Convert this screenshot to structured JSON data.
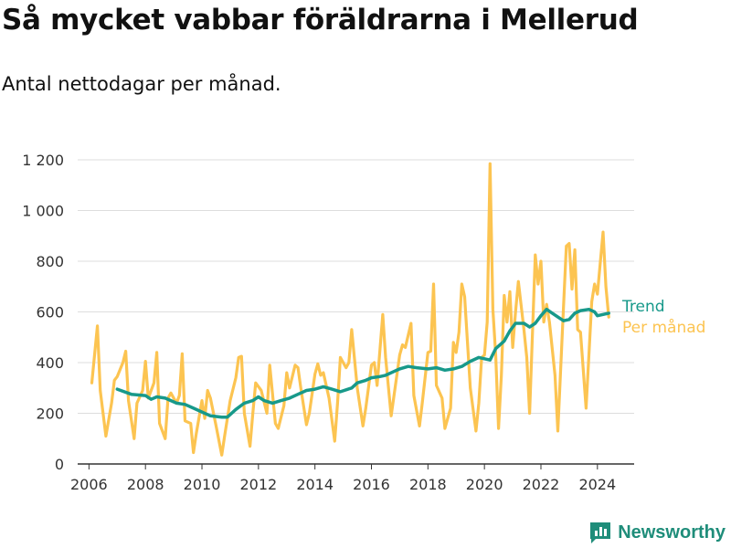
{
  "title": "Så mycket vabbar föräldrarna i Mellerud",
  "subtitle": "Antal nettodagar per månad.",
  "brand": "Newsworthy",
  "colors": {
    "trend": "#17998a",
    "monthly": "#fcc451",
    "grid": "#dddddd",
    "axis": "#333333"
  },
  "chart_data": {
    "type": "line",
    "title": "Så mycket vabbar föräldrarna i Mellerud",
    "subtitle": "Antal nettodagar per månad.",
    "xlabel": "",
    "ylabel": "",
    "xlim": [
      2005.6,
      2025.3
    ],
    "ylim": [
      0,
      1200
    ],
    "x_ticks": [
      2006,
      2008,
      2010,
      2012,
      2014,
      2016,
      2018,
      2020,
      2022,
      2024
    ],
    "x_tick_labels": [
      "2006",
      "2008",
      "2010",
      "2012",
      "2014",
      "2016",
      "2018",
      "2020",
      "2022",
      "2024"
    ],
    "y_ticks": [
      0,
      200,
      400,
      600,
      800,
      1000,
      1200
    ],
    "y_tick_labels": [
      "0",
      "200",
      "400",
      "600",
      "800",
      "1 000",
      "1 200"
    ],
    "grid": true,
    "legend": "right-end labels",
    "series": [
      {
        "name": "Per månad",
        "color": "#fcc451",
        "points": [
          [
            2006.1,
            320
          ],
          [
            2006.3,
            545
          ],
          [
            2006.4,
            290
          ],
          [
            2006.6,
            110
          ],
          [
            2006.8,
            240
          ],
          [
            2006.9,
            330
          ],
          [
            2007.0,
            345
          ],
          [
            2007.2,
            400
          ],
          [
            2007.3,
            445
          ],
          [
            2007.4,
            250
          ],
          [
            2007.6,
            100
          ],
          [
            2007.7,
            240
          ],
          [
            2007.9,
            290
          ],
          [
            2008.0,
            405
          ],
          [
            2008.1,
            260
          ],
          [
            2008.3,
            320
          ],
          [
            2008.4,
            440
          ],
          [
            2008.5,
            160
          ],
          [
            2008.7,
            100
          ],
          [
            2008.8,
            260
          ],
          [
            2008.9,
            280
          ],
          [
            2009.1,
            240
          ],
          [
            2009.2,
            270
          ],
          [
            2009.3,
            435
          ],
          [
            2009.4,
            170
          ],
          [
            2009.6,
            160
          ],
          [
            2009.7,
            45
          ],
          [
            2009.8,
            120
          ],
          [
            2010.0,
            250
          ],
          [
            2010.1,
            180
          ],
          [
            2010.2,
            290
          ],
          [
            2010.3,
            260
          ],
          [
            2010.5,
            150
          ],
          [
            2010.7,
            35
          ],
          [
            2010.8,
            110
          ],
          [
            2011.0,
            250
          ],
          [
            2011.2,
            340
          ],
          [
            2011.3,
            420
          ],
          [
            2011.4,
            425
          ],
          [
            2011.5,
            200
          ],
          [
            2011.7,
            70
          ],
          [
            2011.8,
            200
          ],
          [
            2011.9,
            320
          ],
          [
            2012.1,
            290
          ],
          [
            2012.3,
            200
          ],
          [
            2012.4,
            390
          ],
          [
            2012.6,
            160
          ],
          [
            2012.7,
            140
          ],
          [
            2012.9,
            230
          ],
          [
            2013.0,
            360
          ],
          [
            2013.1,
            300
          ],
          [
            2013.3,
            390
          ],
          [
            2013.4,
            380
          ],
          [
            2013.5,
            300
          ],
          [
            2013.7,
            155
          ],
          [
            2013.8,
            200
          ],
          [
            2014.0,
            355
          ],
          [
            2014.1,
            395
          ],
          [
            2014.2,
            350
          ],
          [
            2014.3,
            360
          ],
          [
            2014.5,
            260
          ],
          [
            2014.7,
            90
          ],
          [
            2014.8,
            240
          ],
          [
            2014.9,
            420
          ],
          [
            2015.1,
            380
          ],
          [
            2015.2,
            400
          ],
          [
            2015.3,
            530
          ],
          [
            2015.5,
            300
          ],
          [
            2015.7,
            150
          ],
          [
            2015.8,
            220
          ],
          [
            2016.0,
            390
          ],
          [
            2016.1,
            400
          ],
          [
            2016.2,
            310
          ],
          [
            2016.4,
            590
          ],
          [
            2016.5,
            420
          ],
          [
            2016.7,
            190
          ],
          [
            2016.8,
            270
          ],
          [
            2017.0,
            430
          ],
          [
            2017.1,
            470
          ],
          [
            2017.2,
            460
          ],
          [
            2017.4,
            555
          ],
          [
            2017.5,
            270
          ],
          [
            2017.7,
            150
          ],
          [
            2017.8,
            240
          ],
          [
            2018.0,
            440
          ],
          [
            2018.1,
            445
          ],
          [
            2018.2,
            710
          ],
          [
            2018.3,
            310
          ],
          [
            2018.5,
            260
          ],
          [
            2018.6,
            140
          ],
          [
            2018.8,
            220
          ],
          [
            2018.9,
            480
          ],
          [
            2019.0,
            440
          ],
          [
            2019.1,
            520
          ],
          [
            2019.2,
            710
          ],
          [
            2019.3,
            660
          ],
          [
            2019.5,
            300
          ],
          [
            2019.7,
            130
          ],
          [
            2019.8,
            240
          ],
          [
            2019.9,
            420
          ],
          [
            2020.0,
            430
          ],
          [
            2020.1,
            560
          ],
          [
            2020.2,
            1185
          ],
          [
            2020.3,
            610
          ],
          [
            2020.4,
            430
          ],
          [
            2020.5,
            140
          ],
          [
            2020.6,
            350
          ],
          [
            2020.7,
            665
          ],
          [
            2020.8,
            560
          ],
          [
            2020.9,
            680
          ],
          [
            2021.0,
            460
          ],
          [
            2021.1,
            600
          ],
          [
            2021.2,
            720
          ],
          [
            2021.4,
            530
          ],
          [
            2021.5,
            420
          ],
          [
            2021.6,
            200
          ],
          [
            2021.8,
            825
          ],
          [
            2021.9,
            710
          ],
          [
            2022.0,
            800
          ],
          [
            2022.1,
            560
          ],
          [
            2022.2,
            630
          ],
          [
            2022.3,
            560
          ],
          [
            2022.5,
            350
          ],
          [
            2022.6,
            130
          ],
          [
            2022.8,
            620
          ],
          [
            2022.9,
            860
          ],
          [
            2023.0,
            870
          ],
          [
            2023.1,
            690
          ],
          [
            2023.2,
            845
          ],
          [
            2023.3,
            530
          ],
          [
            2023.4,
            520
          ],
          [
            2023.6,
            220
          ],
          [
            2023.8,
            640
          ],
          [
            2023.9,
            710
          ],
          [
            2024.0,
            670
          ],
          [
            2024.2,
            915
          ],
          [
            2024.3,
            700
          ],
          [
            2024.4,
            580
          ]
        ]
      },
      {
        "name": "Trend",
        "color": "#17998a",
        "points": [
          [
            2007.0,
            295
          ],
          [
            2007.5,
            275
          ],
          [
            2008.0,
            270
          ],
          [
            2008.2,
            255
          ],
          [
            2008.4,
            265
          ],
          [
            2008.7,
            260
          ],
          [
            2008.9,
            250
          ],
          [
            2009.1,
            240
          ],
          [
            2009.4,
            235
          ],
          [
            2009.7,
            220
          ],
          [
            2010.0,
            205
          ],
          [
            2010.3,
            190
          ],
          [
            2010.7,
            185
          ],
          [
            2010.9,
            185
          ],
          [
            2011.2,
            215
          ],
          [
            2011.5,
            240
          ],
          [
            2011.8,
            250
          ],
          [
            2012.0,
            265
          ],
          [
            2012.2,
            250
          ],
          [
            2012.5,
            240
          ],
          [
            2012.8,
            250
          ],
          [
            2013.1,
            260
          ],
          [
            2013.4,
            275
          ],
          [
            2013.7,
            290
          ],
          [
            2014.0,
            295
          ],
          [
            2014.3,
            305
          ],
          [
            2014.6,
            295
          ],
          [
            2014.9,
            285
          ],
          [
            2015.3,
            300
          ],
          [
            2015.5,
            320
          ],
          [
            2015.8,
            330
          ],
          [
            2016.0,
            340
          ],
          [
            2016.3,
            345
          ],
          [
            2016.5,
            350
          ],
          [
            2016.8,
            365
          ],
          [
            2017.0,
            375
          ],
          [
            2017.3,
            385
          ],
          [
            2017.6,
            380
          ],
          [
            2018.0,
            375
          ],
          [
            2018.3,
            380
          ],
          [
            2018.6,
            370
          ],
          [
            2018.9,
            375
          ],
          [
            2019.2,
            385
          ],
          [
            2019.5,
            405
          ],
          [
            2019.8,
            420
          ],
          [
            2020.0,
            415
          ],
          [
            2020.2,
            410
          ],
          [
            2020.4,
            455
          ],
          [
            2020.7,
            485
          ],
          [
            2020.9,
            525
          ],
          [
            2021.1,
            555
          ],
          [
            2021.4,
            555
          ],
          [
            2021.6,
            540
          ],
          [
            2021.8,
            555
          ],
          [
            2022.0,
            585
          ],
          [
            2022.2,
            610
          ],
          [
            2022.4,
            595
          ],
          [
            2022.6,
            580
          ],
          [
            2022.8,
            565
          ],
          [
            2023.0,
            570
          ],
          [
            2023.2,
            595
          ],
          [
            2023.4,
            605
          ],
          [
            2023.7,
            610
          ],
          [
            2023.9,
            600
          ],
          [
            2024.0,
            585
          ],
          [
            2024.2,
            590
          ],
          [
            2024.4,
            595
          ]
        ]
      }
    ]
  }
}
